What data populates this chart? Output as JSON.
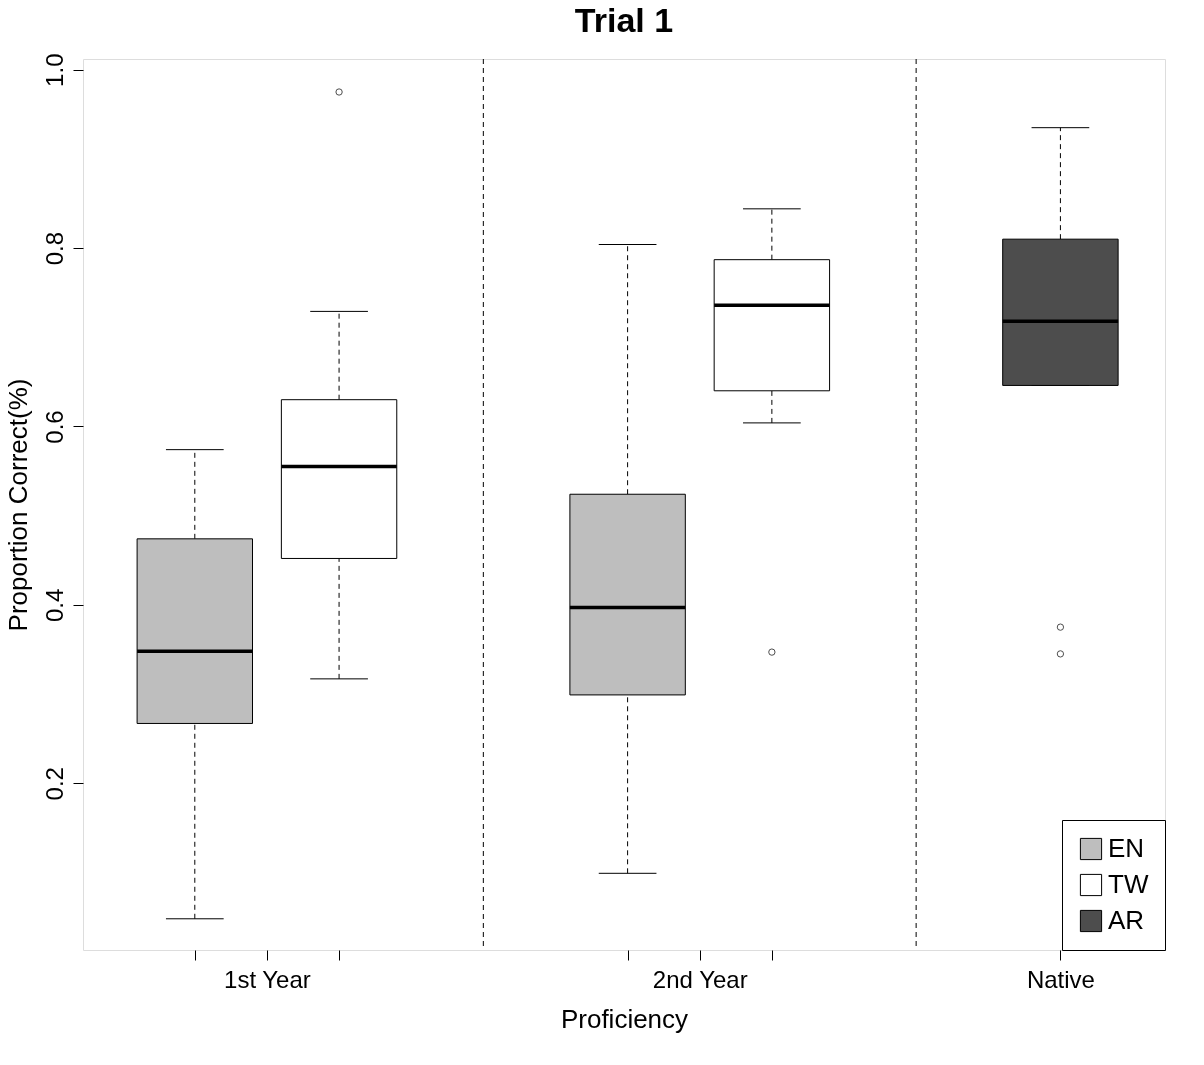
{
  "chart_data": {
    "type": "box",
    "title": "Trial 1",
    "xlabel": "Proficiency",
    "ylabel": "Proportion Correct(%)",
    "categories": [
      "1st Year",
      "2nd Year",
      "Native"
    ],
    "ylim": [
      0.013,
      1.012
    ],
    "yticks": [
      0.2,
      0.4,
      0.6,
      0.8,
      {
        "value": 1,
        "label": "1.0"
      }
    ],
    "grid": false,
    "legend": "bottom right",
    "series": [
      {
        "name": "EN",
        "color": "#bebebe",
        "boxes": [
          {
            "low": 0.048,
            "q1": 0.267,
            "median": 0.348,
            "q3": 0.474,
            "high": 0.574
          },
          {
            "low": 0.099,
            "q1": 0.299,
            "median": 0.397,
            "q3": 0.524,
            "high": 0.804
          },
          null
        ]
      },
      {
        "name": "TW",
        "color": "#ffffff",
        "boxes": [
          {
            "low": 0.317,
            "q1": 0.452,
            "median": 0.555,
            "q3": 0.63,
            "high": 0.729,
            "outliers": [
              0.975
            ]
          },
          {
            "low": 0.604,
            "q1": 0.64,
            "median": 0.736,
            "q3": 0.787,
            "high": 0.844,
            "outliers": [
              0.347
            ]
          },
          null
        ]
      },
      {
        "name": "AR",
        "color": "#4d4d4d",
        "boxes": [
          null,
          null,
          {
            "low": 0.646,
            "q1": 0.646,
            "median": 0.718,
            "q3": 0.81,
            "high": 0.935,
            "outliers": [
              0.375,
              0.345
            ]
          }
        ]
      }
    ]
  }
}
